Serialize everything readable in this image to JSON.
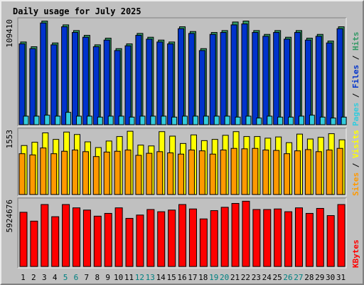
{
  "chart_data": {
    "type": "bar",
    "title": "Daily usage for July 2025",
    "categories": [
      "1",
      "2",
      "3",
      "4",
      "5",
      "6",
      "7",
      "8",
      "9",
      "10",
      "11",
      "12",
      "13",
      "14",
      "15",
      "16",
      "17",
      "18",
      "19",
      "20",
      "21",
      "22",
      "23",
      "24",
      "25",
      "26",
      "27",
      "28",
      "29",
      "30",
      "31"
    ],
    "weekend_days": [
      "5",
      "6",
      "12",
      "13",
      "19",
      "20",
      "26",
      "27"
    ],
    "colors": {
      "hits": "#339966",
      "files": "#0033cc",
      "pages": "#33ccdd",
      "visits": "#ffff00",
      "sites": "#ff9900",
      "kbytes": "#ff0000",
      "title": "#0000cc",
      "panel_bg": "#c0c0c0",
      "plot_bg": "#c0c0c0",
      "weekend_label": "#008080",
      "weekday_label": "#000000"
    },
    "panels": [
      {
        "scale_max_label": "109410",
        "ylim": [
          0,
          109410
        ],
        "legend": [
          {
            "text": "Pages",
            "color": "#33ccdd"
          },
          {
            "text": " / ",
            "color": "#000000"
          },
          {
            "text": "Files",
            "color": "#0033cc"
          },
          {
            "text": " / ",
            "color": "#000000"
          },
          {
            "text": "Hits",
            "color": "#339966"
          }
        ],
        "series": [
          {
            "key": "hits",
            "color": "#339966",
            "values": [
              87000,
              82000,
              109000,
              86000,
              105000,
              99000,
              94000,
              84000,
              91000,
              80000,
              85000,
              96000,
              92000,
              89000,
              87000,
              103000,
              98000,
              80000,
              97000,
              99000,
              108000,
              109000,
              99000,
              95000,
              99000,
              92000,
              99000,
              91000,
              95000,
              88000,
              103000
            ]
          },
          {
            "key": "files",
            "color": "#0033cc",
            "values": [
              85000,
              80000,
              107000,
              84000,
              103000,
              97000,
              92000,
              82000,
              89000,
              78000,
              83000,
              94000,
              90000,
              87000,
              85000,
              101000,
              96000,
              78000,
              95000,
              97000,
              105000,
              106000,
              97000,
              93000,
              97000,
              90000,
              97000,
              89000,
              93000,
              86000,
              101000
            ]
          },
          {
            "key": "pages",
            "color": "#33ccdd",
            "values": [
              9000,
              9000,
              10000,
              9000,
              13000,
              9000,
              9000,
              8000,
              9000,
              9000,
              8000,
              9000,
              9000,
              9000,
              8000,
              9000,
              9000,
              9000,
              9000,
              9000,
              8000,
              9000,
              7000,
              9000,
              8000,
              8000,
              9000,
              10000,
              8000,
              7000,
              8000
            ]
          }
        ]
      },
      {
        "scale_max_label": "1553",
        "ylim": [
          0,
          1553
        ],
        "legend": [
          {
            "text": "Sites",
            "color": "#ff9900"
          },
          {
            "text": " / ",
            "color": "#000000"
          },
          {
            "text": "Visits",
            "color": "#ffff00"
          }
        ],
        "series": [
          {
            "key": "visits",
            "color": "#ffff00",
            "values": [
              1200,
              1280,
              1510,
              1350,
              1530,
              1470,
              1290,
              1150,
              1310,
              1420,
              1550,
              1210,
              1190,
              1540,
              1430,
              1250,
              1460,
              1320,
              1350,
              1450,
              1540,
              1420,
              1420,
              1380,
              1410,
              1270,
              1480,
              1360,
              1400,
              1490,
              1340
            ]
          },
          {
            "key": "sites",
            "color": "#ff9900",
            "values": [
              1000,
              970,
              1140,
              1000,
              1060,
              1090,
              1050,
              930,
              1040,
              1060,
              1090,
              960,
              1010,
              1050,
              1020,
              990,
              1090,
              1070,
              990,
              1090,
              1130,
              1120,
              1130,
              1090,
              1080,
              1000,
              1070,
              1100,
              1050,
              1090,
              1130
            ]
          }
        ]
      },
      {
        "scale_max_label": "5924676",
        "ylim": [
          0,
          5924676
        ],
        "legend": [
          {
            "text": "KBytes",
            "color": "#ff0000"
          }
        ],
        "series": [
          {
            "key": "kbytes",
            "color": "#ff0000",
            "values": [
              4900000,
              4100000,
              5600000,
              4500000,
              5600000,
              5300000,
              5100000,
              4550000,
              4800000,
              5300000,
              4350000,
              4650000,
              5150000,
              4950000,
              5100000,
              5600000,
              5200000,
              4300000,
              5050000,
              5350000,
              5700000,
              5900000,
              5150000,
              5150000,
              5200000,
              4950000,
              5300000,
              4800000,
              5250000,
              4600000,
              5600000
            ]
          }
        ]
      }
    ]
  }
}
